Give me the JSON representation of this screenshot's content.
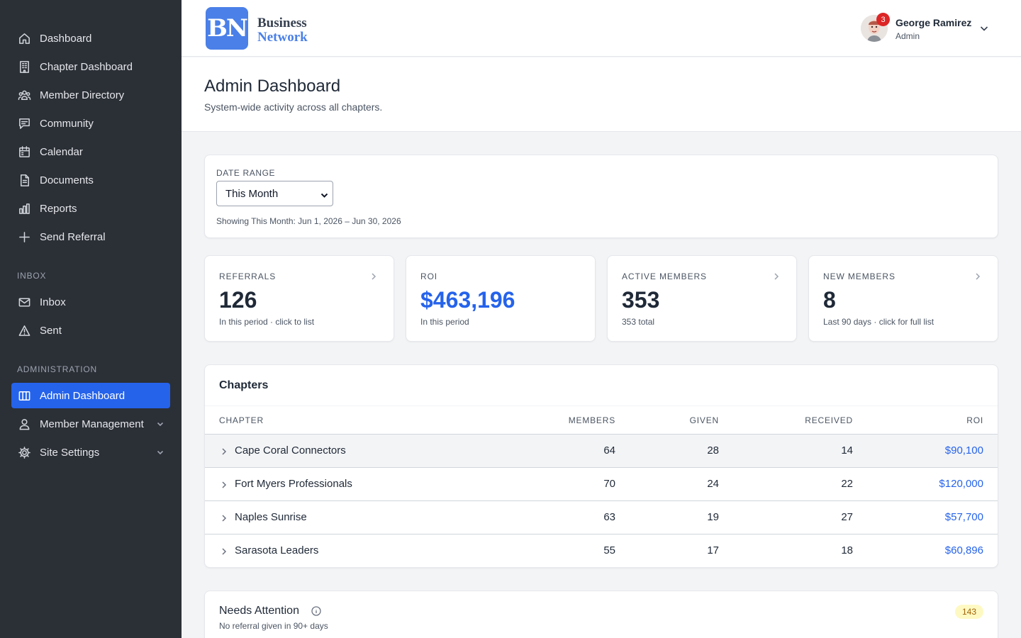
{
  "sidebar": {
    "items": [
      {
        "label": "Dashboard",
        "icon": "home-icon"
      },
      {
        "label": "Chapter Dashboard",
        "icon": "building-icon"
      },
      {
        "label": "Member Directory",
        "icon": "users-icon"
      },
      {
        "label": "Community",
        "icon": "chat-icon"
      },
      {
        "label": "Calendar",
        "icon": "calendar-icon"
      },
      {
        "label": "Documents",
        "icon": "document-icon"
      },
      {
        "label": "Reports",
        "icon": "bar-chart-icon"
      },
      {
        "label": "Send Referral",
        "icon": "plus-icon"
      }
    ],
    "inbox_section": "INBOX",
    "inbox_items": [
      {
        "label": "Inbox",
        "icon": "mail-icon"
      },
      {
        "label": "Sent",
        "icon": "send-icon"
      }
    ],
    "admin_section": "ADMINISTRATION",
    "admin_items": [
      {
        "label": "Admin Dashboard",
        "icon": "columns-icon",
        "active": true
      },
      {
        "label": "Member Management",
        "icon": "user-icon"
      },
      {
        "label": "Site Settings",
        "icon": "gear-icon"
      }
    ]
  },
  "topbar": {
    "logo_text": "BN",
    "brand_line1": "Business",
    "brand_line2": "Network",
    "notification_count": "3",
    "user_name": "George Ramirez",
    "user_role": "Admin"
  },
  "header": {
    "title": "Admin Dashboard",
    "subtitle": "System-wide activity across all chapters."
  },
  "date_range": {
    "label": "DATE RANGE",
    "selected": "This Month",
    "note": "Showing This Month: Jun 1, 2026 – Jun 30, 2026"
  },
  "stats": [
    {
      "label": "REFERRALS",
      "value": "126",
      "sub": "In this period · click to list"
    },
    {
      "label": "ROI",
      "value": "$463,196",
      "sub": "In this period"
    },
    {
      "label": "ACTIVE MEMBERS",
      "value": "353",
      "sub": "353 total"
    },
    {
      "label": "NEW MEMBERS",
      "value": "8",
      "sub": "Last 90 days · click for full list"
    }
  ],
  "chapters": {
    "title": "Chapters",
    "columns": [
      "CHAPTER",
      "MEMBERS",
      "GIVEN",
      "RECEIVED",
      "ROI"
    ],
    "rows": [
      {
        "name": "Cape Coral Connectors",
        "members": "64",
        "given": "28",
        "received": "14",
        "roi": "$90,100"
      },
      {
        "name": "Fort Myers Professionals",
        "members": "70",
        "given": "24",
        "received": "22",
        "roi": "$120,000"
      },
      {
        "name": "Naples Sunrise",
        "members": "63",
        "given": "19",
        "received": "27",
        "roi": "$57,700"
      },
      {
        "name": "Sarasota Leaders",
        "members": "55",
        "given": "17",
        "received": "18",
        "roi": "$60,896"
      }
    ]
  },
  "needs_attention": {
    "title": "Needs Attention",
    "subtitle": "No referral given in 90+ days",
    "count": "143"
  },
  "colors": {
    "accent": "#2563eb",
    "sidebar_bg": "#2b2f36",
    "logo_bg": "#4a80e8",
    "alert": "#dc2626"
  }
}
